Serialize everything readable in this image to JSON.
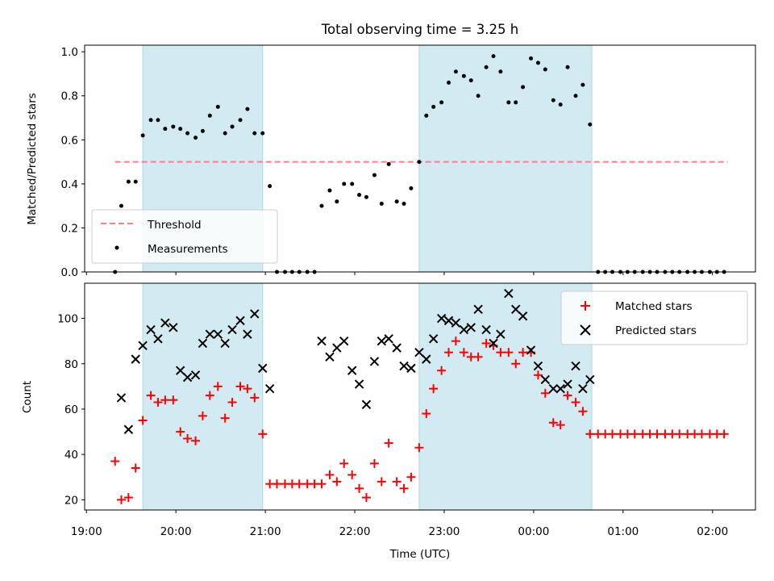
{
  "chart_data": {
    "type": "scatter",
    "title": "Total observing time = 3.25 h",
    "xlabel": "Time (UTC)",
    "x_tick_labels": [
      "19:00",
      "20:00",
      "21:00",
      "22:00",
      "23:00",
      "00:00",
      "01:00",
      "02:00"
    ],
    "x_ticks_hours": [
      19,
      20,
      21,
      22,
      23,
      24,
      25,
      26
    ],
    "xlim_hours": [
      18.98,
      26.48
    ],
    "shaded_intervals_hours": [
      [
        19.63,
        20.97
      ],
      [
        22.72,
        24.65
      ]
    ],
    "colors": {
      "shade": "#add8e6",
      "threshold": "#ff7f7f",
      "matched": "#ff0000",
      "predicted": "#000000",
      "measurements": "#000000"
    },
    "panels": [
      {
        "ylabel": "Matched/Predicted stars",
        "ylim": [
          0,
          1.03
        ],
        "y_ticks": [
          "0.0",
          "0.2",
          "0.4",
          "0.6",
          "0.8",
          "1.0"
        ],
        "legend_position": "lower-left",
        "legend": [
          "Threshold",
          "Measurements"
        ],
        "threshold": {
          "name": "Threshold",
          "y": 0.5,
          "x_range": [
            19.32,
            26.17
          ]
        },
        "measurements": {
          "name": "Measurements",
          "x": [
            19.32,
            19.39,
            19.47,
            19.55,
            19.63,
            19.72,
            19.8,
            19.88,
            19.97,
            20.05,
            20.13,
            20.22,
            20.3,
            20.38,
            20.47,
            20.55,
            20.63,
            20.72,
            20.8,
            20.88,
            20.97,
            21.05,
            21.13,
            21.22,
            21.3,
            21.38,
            21.47,
            21.55,
            21.63,
            21.72,
            21.8,
            21.88,
            21.97,
            22.05,
            22.13,
            22.22,
            22.3,
            22.38,
            22.47,
            22.55,
            22.63,
            22.72,
            22.8,
            22.88,
            22.97,
            23.05,
            23.13,
            23.22,
            23.3,
            23.38,
            23.47,
            23.55,
            23.63,
            23.72,
            23.8,
            23.88,
            23.97,
            24.05,
            24.13,
            24.22,
            24.3,
            24.38,
            24.47,
            24.55,
            24.63,
            24.72,
            24.8,
            24.88,
            24.97,
            25.05,
            25.13,
            25.22,
            25.3,
            25.38,
            25.47,
            25.55,
            25.63,
            25.72,
            25.8,
            25.88,
            25.97,
            26.05,
            26.13
          ],
          "y": [
            0.0,
            0.3,
            0.41,
            0.41,
            0.62,
            0.69,
            0.69,
            0.65,
            0.66,
            0.65,
            0.63,
            0.61,
            0.64,
            0.71,
            0.75,
            0.63,
            0.66,
            0.69,
            0.74,
            0.63,
            0.63,
            0.39,
            0.0,
            0.0,
            0.0,
            0.0,
            0.0,
            0.0,
            0.3,
            0.37,
            0.32,
            0.4,
            0.4,
            0.35,
            0.34,
            0.44,
            0.31,
            0.49,
            0.32,
            0.31,
            0.38,
            0.5,
            0.71,
            0.75,
            0.77,
            0.86,
            0.91,
            0.89,
            0.87,
            0.8,
            0.93,
            0.98,
            0.91,
            0.77,
            0.77,
            0.84,
            0.97,
            0.95,
            0.92,
            0.78,
            0.76,
            0.93,
            0.8,
            0.85,
            0.67,
            0.0,
            0.0,
            0.0,
            0.0,
            0.0,
            0.0,
            0.0,
            0.0,
            0.0,
            0.0,
            0.0,
            0.0,
            0.0,
            0.0,
            0.0,
            0.0,
            0.0,
            0.0
          ]
        }
      },
      {
        "ylabel": "Count",
        "ylim": [
          15.5,
          115.5
        ],
        "y_ticks": [
          "20",
          "40",
          "60",
          "80",
          "100"
        ],
        "legend_position": "upper-right",
        "legend": [
          "Matched stars",
          "Predicted stars"
        ],
        "series": [
          {
            "name": "Matched stars",
            "marker": "plus",
            "x": [
              19.32,
              19.39,
              19.47,
              19.55,
              19.63,
              19.72,
              19.8,
              19.88,
              19.97,
              20.05,
              20.13,
              20.22,
              20.3,
              20.38,
              20.47,
              20.55,
              20.63,
              20.72,
              20.8,
              20.88,
              20.97,
              21.05,
              21.13,
              21.22,
              21.3,
              21.38,
              21.47,
              21.55,
              21.63,
              21.72,
              21.8,
              21.88,
              21.97,
              22.05,
              22.13,
              22.22,
              22.3,
              22.38,
              22.47,
              22.55,
              22.63,
              22.72,
              22.8,
              22.88,
              22.97,
              23.05,
              23.13,
              23.22,
              23.3,
              23.38,
              23.47,
              23.55,
              23.63,
              23.72,
              23.8,
              23.88,
              23.97,
              24.05,
              24.13,
              24.22,
              24.3,
              24.38,
              24.47,
              24.55,
              24.63,
              24.72,
              24.8,
              24.88,
              24.97,
              25.05,
              25.13,
              25.22,
              25.3,
              25.38,
              25.47,
              25.55,
              25.63,
              25.72,
              25.8,
              25.88,
              25.97,
              26.05,
              26.13
            ],
            "y": [
              37,
              20,
              21,
              34,
              55,
              66,
              63,
              64,
              64,
              50,
              47,
              46,
              57,
              66,
              70,
              56,
              63,
              70,
              69,
              65,
              49,
              27,
              27,
              27,
              27,
              27,
              27,
              27,
              27,
              31,
              28,
              36,
              31,
              25,
              21,
              36,
              28,
              45,
              28,
              25,
              30,
              43,
              58,
              69,
              77,
              85,
              90,
              85,
              83,
              83,
              89,
              88,
              85,
              85,
              80,
              85,
              85,
              75,
              67,
              54,
              53,
              66,
              63,
              59,
              49,
              49,
              49,
              49,
              49,
              49,
              49,
              49,
              49,
              49,
              49,
              49,
              49,
              49,
              49,
              49,
              49,
              49,
              49
            ]
          },
          {
            "name": "Predicted stars",
            "marker": "cross",
            "x": [
              19.39,
              19.47,
              19.55,
              19.63,
              19.72,
              19.8,
              19.88,
              19.97,
              20.05,
              20.13,
              20.22,
              20.3,
              20.38,
              20.47,
              20.55,
              20.63,
              20.72,
              20.8,
              20.88,
              20.97,
              21.05,
              21.63,
              21.72,
              21.8,
              21.88,
              21.97,
              22.05,
              22.13,
              22.22,
              22.3,
              22.38,
              22.47,
              22.55,
              22.63,
              22.72,
              22.8,
              22.88,
              22.97,
              23.05,
              23.13,
              23.22,
              23.3,
              23.38,
              23.47,
              23.55,
              23.63,
              23.72,
              23.8,
              23.88,
              23.97,
              24.05,
              24.13,
              24.22,
              24.3,
              24.38,
              24.47,
              24.55,
              24.63
            ],
            "y": [
              65,
              51,
              82,
              88,
              95,
              91,
              98,
              96,
              77,
              74,
              75,
              89,
              93,
              93,
              89,
              95,
              99,
              93,
              102,
              78,
              69,
              90,
              83,
              87,
              90,
              77,
              71,
              62,
              81,
              90,
              91,
              87,
              79,
              78,
              85,
              82,
              91,
              100,
              99,
              98,
              95,
              96,
              104,
              95,
              89,
              93,
              111,
              104,
              101,
              86,
              79,
              73,
              69,
              69,
              71,
              79,
              69,
              73
            ]
          }
        ]
      }
    ]
  }
}
